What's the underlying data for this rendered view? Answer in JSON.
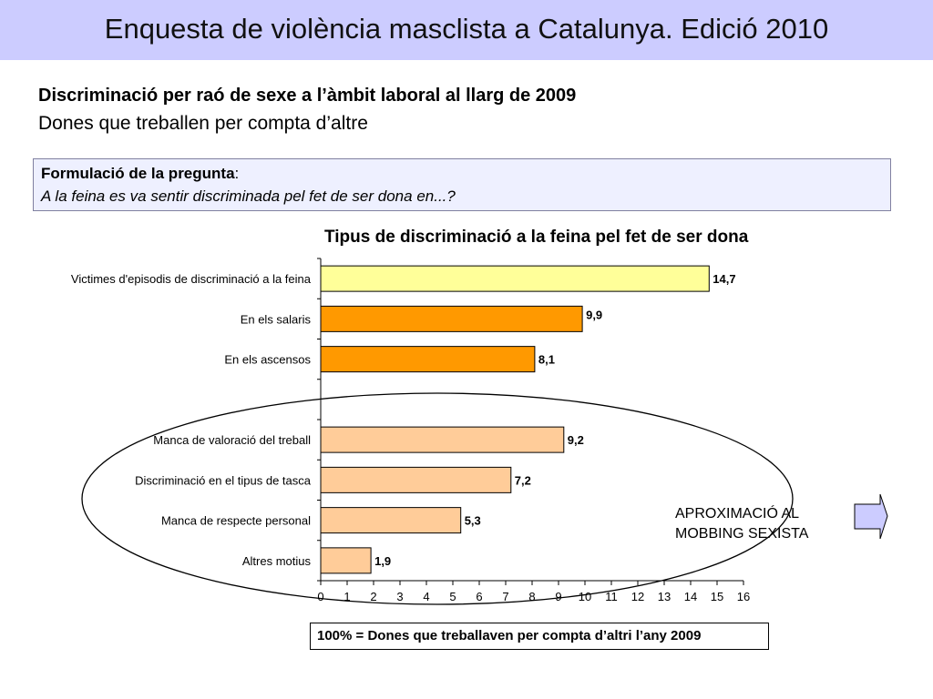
{
  "header": {
    "title": "Enquesta de violència masclista a Catalunya. Edició 2010"
  },
  "heading": {
    "bold": "Discriminació per raó de sexe a l’àmbit laboral al llarg de 2009",
    "subtitle": "Dones que treballen per compta d’altre"
  },
  "question": {
    "label": "Formulació de la pregunta",
    "colon": ":",
    "text": "A la feina es va sentir discriminada pel fet de ser dona en...?"
  },
  "annotation": {
    "line1": "APROXIMACIÓ AL",
    "line2": "MOBBING SEXISTA"
  },
  "footer": {
    "note": "100% = Dones que treballaven per compta d’altri  l’any 2009"
  },
  "chart_data": {
    "type": "bar",
    "orientation": "horizontal",
    "title": "Tipus de discriminació a la feina pel fet de ser dona",
    "categories": [
      "Victimes d'episodis de discriminació a la feina",
      "En els salaris",
      "En els ascensos",
      "",
      "Manca de valoració del treball",
      "Discriminació en el tipus de tasca",
      "Manca de respecte personal",
      "Altres motius"
    ],
    "values": [
      14.7,
      9.9,
      8.1,
      null,
      9.2,
      7.2,
      5.3,
      1.9
    ],
    "value_labels": [
      "14,7",
      "9,9",
      "8,1",
      "",
      "9,2",
      "7,2",
      "5,3",
      "1,9"
    ],
    "bar_colors": [
      "#ffff99",
      "#ff9900",
      "#ff9900",
      "",
      "#ffcc99",
      "#ffcc99",
      "#ffcc99",
      "#ffcc99"
    ],
    "xlim": [
      0,
      16
    ],
    "xticks": [
      0,
      1,
      2,
      3,
      4,
      5,
      6,
      7,
      8,
      9,
      10,
      11,
      12,
      13,
      14,
      15,
      16
    ],
    "xlabel": "",
    "ylabel": "",
    "grid": false,
    "legend": "none"
  }
}
